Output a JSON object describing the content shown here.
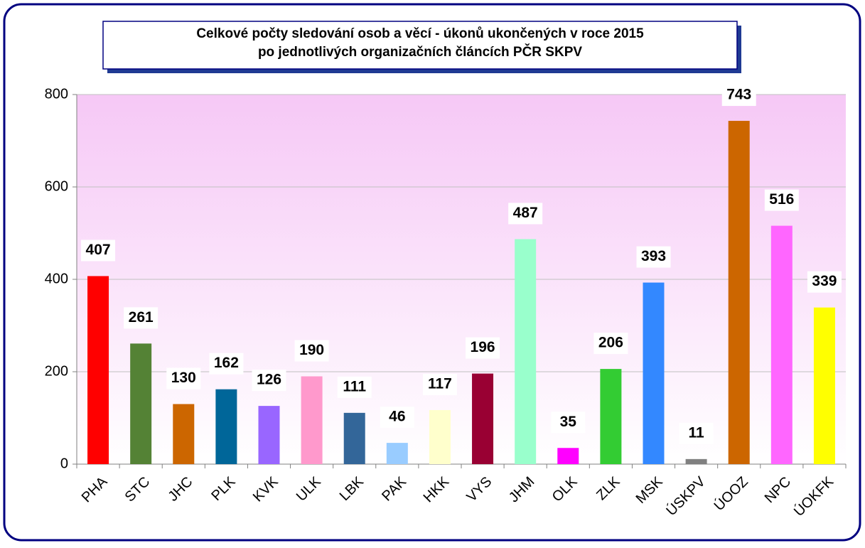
{
  "chart_data": {
    "type": "bar",
    "title": [
      "Celkové počty sledování osob a věcí - úkonů ukončených v roce 2015",
      "po jednotlivých organizačních článcích PČR SKPV"
    ],
    "categories": [
      "PHA",
      "STC",
      "JHC",
      "PLK",
      "KVK",
      "ULK",
      "LBK",
      "PAK",
      "HKK",
      "VYS",
      "JHM",
      "OLK",
      "ZLK",
      "MSK",
      "ÚSKPV",
      "ÚOOZ",
      "NPC",
      "ÚOKFK"
    ],
    "values": [
      407,
      261,
      130,
      162,
      126,
      190,
      111,
      46,
      117,
      196,
      487,
      35,
      206,
      393,
      11,
      743,
      516,
      339
    ],
    "colors": [
      "#ff0000",
      "#548235",
      "#cc6600",
      "#006699",
      "#9966ff",
      "#ff99cc",
      "#336699",
      "#99ccff",
      "#ffffcc",
      "#990033",
      "#99ffcc",
      "#ff00ff",
      "#33cc33",
      "#3388ff",
      "#808080",
      "#cc6600",
      "#ff66ff",
      "#ffff00"
    ],
    "ylim": [
      0,
      800
    ],
    "yticks": [
      0,
      200,
      400,
      600,
      800
    ],
    "grid": true
  }
}
